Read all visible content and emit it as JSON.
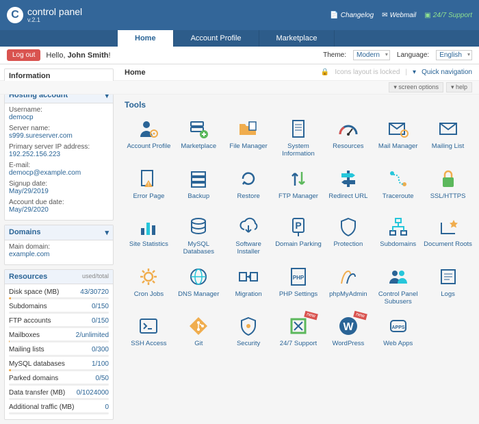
{
  "brand": {
    "name": "control panel",
    "version": "v.2.1"
  },
  "topLinks": {
    "changelog": "Changelog",
    "webmail": "Webmail",
    "support": "24/7 Support"
  },
  "nav": {
    "tabs": [
      "Home",
      "Account Profile",
      "Marketplace"
    ],
    "active": 0
  },
  "info": {
    "logout": "Log out",
    "greeting_pre": "Hello, ",
    "greeting_name": "John Smith",
    "greeting_post": "!",
    "theme_label": "Theme:",
    "theme_value": "Modern",
    "lang_label": "Language:",
    "lang_value": "English"
  },
  "crumb": {
    "title": "Home",
    "lock": "Icons layout is locked",
    "quicknav": "Quick navigation",
    "screen_options": "screen options",
    "help": "help"
  },
  "information_label": "Information",
  "hosting": {
    "title": "Hosting account",
    "rows": [
      {
        "k": "Username:",
        "v": "democp"
      },
      {
        "k": "Server name:",
        "v": "s999.sureserver.com"
      },
      {
        "k": "Primary server IP address:",
        "v": "192.252.156.223"
      },
      {
        "k": "E-mail:",
        "v": "democp@example.com"
      },
      {
        "k": "Signup date:",
        "v": "May/29/2019"
      },
      {
        "k": "Account due date:",
        "v": "May/29/2020"
      }
    ]
  },
  "domains": {
    "title": "Domains",
    "main_label": "Main domain:",
    "main_value": "example.com"
  },
  "resources": {
    "title": "Resources",
    "subtitle": "used/total",
    "rows": [
      {
        "k": "Disk space (MB)",
        "v": "43/30720",
        "pct": 2
      },
      {
        "k": "Subdomains",
        "v": "0/150",
        "pct": 0
      },
      {
        "k": "FTP accounts",
        "v": "0/150",
        "pct": 0
      },
      {
        "k": "Mailboxes",
        "v": "2/unlimited",
        "pct": 1
      },
      {
        "k": "Mailing lists",
        "v": "0/300",
        "pct": 0
      },
      {
        "k": "MySQL databases",
        "v": "1/100",
        "pct": 2
      },
      {
        "k": "Parked domains",
        "v": "0/50",
        "pct": 0
      },
      {
        "k": "Data transfer (MB)",
        "v": "0/1024000",
        "pct": 0
      },
      {
        "k": "Additional traffic (MB)",
        "v": "0",
        "pct": 0
      }
    ]
  },
  "tools_title": "Tools",
  "tools": [
    {
      "label": "Account Profile",
      "icon": "user-gear",
      "c1": "#2a6496",
      "c2": "#f0ad4e"
    },
    {
      "label": "Marketplace",
      "icon": "server-plus",
      "c1": "#2a6496",
      "c2": "#5cb85c"
    },
    {
      "label": "File Manager",
      "icon": "folder-file",
      "c1": "#f0ad4e",
      "c2": "#2a6496"
    },
    {
      "label": "System Information",
      "icon": "page-lines",
      "c1": "#2a6496",
      "c2": "#2a6496"
    },
    {
      "label": "Resources",
      "icon": "gauge",
      "c1": "#d9534f",
      "c2": "#2a6496"
    },
    {
      "label": "Mail Manager",
      "icon": "envelope-gear",
      "c1": "#2a6496",
      "c2": "#f0ad4e"
    },
    {
      "label": "Mailing List",
      "icon": "envelope",
      "c1": "#2a6496",
      "c2": "#2a6496"
    },
    {
      "label": "Error Page",
      "icon": "page-warn",
      "c1": "#2a6496",
      "c2": "#f0ad4e"
    },
    {
      "label": "Backup",
      "icon": "stack",
      "c1": "#2a6496",
      "c2": "#2a6496"
    },
    {
      "label": "Restore",
      "icon": "cycle",
      "c1": "#2a6496",
      "c2": "#2a6496"
    },
    {
      "label": "FTP Manager",
      "icon": "arrows-updown",
      "c1": "#2a6496",
      "c2": "#5cb85c"
    },
    {
      "label": "Redirect URL",
      "icon": "signpost",
      "c1": "#2a6496",
      "c2": "#26c6da"
    },
    {
      "label": "Traceroute",
      "icon": "path-dots",
      "c1": "#26c6da",
      "c2": "#f0ad4e"
    },
    {
      "label": "SSL/HTTPS",
      "icon": "padlock",
      "c1": "#5cb85c",
      "c2": "#f0ad4e"
    },
    {
      "label": "Site Statistics",
      "icon": "bars",
      "c1": "#2a6496",
      "c2": "#26c6da"
    },
    {
      "label": "MySQL Databases",
      "icon": "db",
      "c1": "#2a6496",
      "c2": "#2a6496"
    },
    {
      "label": "Software Installer",
      "icon": "cloud-down",
      "c1": "#2a6496",
      "c2": "#2a6496"
    },
    {
      "label": "Domain Parking",
      "icon": "p-sign",
      "c1": "#2a6496",
      "c2": "#2a6496"
    },
    {
      "label": "Protection",
      "icon": "shield",
      "c1": "#2a6496",
      "c2": "#2a6496"
    },
    {
      "label": "Subdomains",
      "icon": "tree",
      "c1": "#26c6da",
      "c2": "#2a6496"
    },
    {
      "label": "Document Roots",
      "icon": "root-star",
      "c1": "#2a6496",
      "c2": "#f0ad4e"
    },
    {
      "label": "Cron Jobs",
      "icon": "gear",
      "c1": "#f0ad4e",
      "c2": "#f0ad4e"
    },
    {
      "label": "DNS Manager",
      "icon": "dns",
      "c1": "#2a6496",
      "c2": "#26c6da"
    },
    {
      "label": "Migration",
      "icon": "migrate",
      "c1": "#2a6496",
      "c2": "#2a6496"
    },
    {
      "label": "PHP Settings",
      "icon": "php",
      "c1": "#2a6496",
      "c2": "#2a6496"
    },
    {
      "label": "phpMyAdmin",
      "icon": "pma",
      "c1": "#f0ad4e",
      "c2": "#2a6496"
    },
    {
      "label": "Control Panel Subusers",
      "icon": "users",
      "c1": "#2a6496",
      "c2": "#26c6da"
    },
    {
      "label": "Logs",
      "icon": "logs",
      "c1": "#2a6496",
      "c2": "#2a6496"
    },
    {
      "label": "SSH Access",
      "icon": "terminal",
      "c1": "#2a6496",
      "c2": "#2a6496"
    },
    {
      "label": "Git",
      "icon": "git",
      "c1": "#f0ad4e",
      "c2": "#f0ad4e"
    },
    {
      "label": "Security",
      "icon": "shield-dot",
      "c1": "#2a6496",
      "c2": "#f0ad4e"
    },
    {
      "label": "24/7 Support",
      "icon": "support",
      "c1": "#5cb85c",
      "c2": "#2a6496",
      "new": true
    },
    {
      "label": "WordPress",
      "icon": "wp",
      "c1": "#2a6496",
      "c2": "#ffffff",
      "new": true
    },
    {
      "label": "Web Apps",
      "icon": "apps",
      "c1": "#2a6496",
      "c2": "#2a6496"
    }
  ],
  "colors": {
    "primary": "#336699",
    "link": "#2a6496",
    "accent": "#f0ad4e",
    "green": "#5cb85c",
    "red": "#d9534f",
    "teal": "#26c6da"
  }
}
